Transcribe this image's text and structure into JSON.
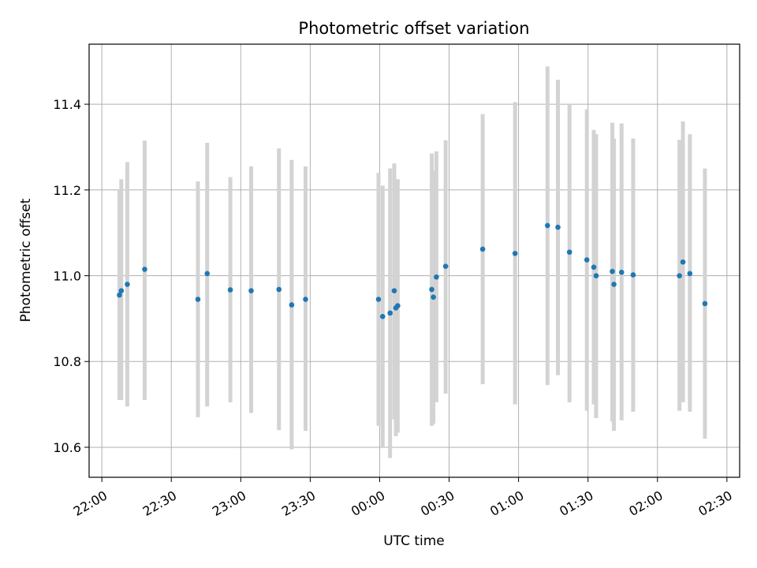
{
  "chart_data": {
    "type": "scatter",
    "title": "Photometric offset variation",
    "xlabel": "UTC time",
    "ylabel": "Photometric offset",
    "grid": true,
    "x_unit": "minutes",
    "x_ticks": [
      {
        "value": 0,
        "label": "22:00"
      },
      {
        "value": 30,
        "label": "22:30"
      },
      {
        "value": 60,
        "label": "23:00"
      },
      {
        "value": 90,
        "label": "23:30"
      },
      {
        "value": 120,
        "label": "00:00"
      },
      {
        "value": 150,
        "label": "00:30"
      },
      {
        "value": 180,
        "label": "01:00"
      },
      {
        "value": 210,
        "label": "01:30"
      },
      {
        "value": 240,
        "label": "02:00"
      },
      {
        "value": 270,
        "label": "02:30"
      }
    ],
    "y_ticks": [
      10.6,
      10.8,
      11.0,
      11.2,
      11.4
    ],
    "xlim": [
      -5.5,
      275.5
    ],
    "ylim": [
      10.53,
      11.54
    ],
    "colors": {
      "points": "#1f77b4",
      "errorbars": "#d3d3d3",
      "grid": "#b0b0b0"
    },
    "points": [
      {
        "x": 7.6,
        "y": 10.955,
        "lo": 10.71,
        "hi": 11.2
      },
      {
        "x": 8.4,
        "y": 10.965,
        "lo": 10.71,
        "hi": 11.225
      },
      {
        "x": 11.0,
        "y": 10.98,
        "lo": 10.695,
        "hi": 11.265
      },
      {
        "x": 18.5,
        "y": 11.015,
        "lo": 10.71,
        "hi": 11.315
      },
      {
        "x": 41.5,
        "y": 10.945,
        "lo": 10.67,
        "hi": 11.22
      },
      {
        "x": 45.5,
        "y": 11.005,
        "lo": 10.695,
        "hi": 11.31
      },
      {
        "x": 55.5,
        "y": 10.967,
        "lo": 10.705,
        "hi": 11.23
      },
      {
        "x": 64.5,
        "y": 10.965,
        "lo": 10.68,
        "hi": 11.255
      },
      {
        "x": 76.5,
        "y": 10.968,
        "lo": 10.64,
        "hi": 11.297
      },
      {
        "x": 82.0,
        "y": 10.932,
        "lo": 10.595,
        "hi": 11.27
      },
      {
        "x": 88.0,
        "y": 10.945,
        "lo": 10.638,
        "hi": 11.255
      },
      {
        "x": 119.5,
        "y": 10.945,
        "lo": 10.65,
        "hi": 11.24
      },
      {
        "x": 121.3,
        "y": 10.905,
        "lo": 10.6,
        "hi": 11.21
      },
      {
        "x": 124.5,
        "y": 10.913,
        "lo": 10.575,
        "hi": 11.25
      },
      {
        "x": 126.3,
        "y": 10.965,
        "lo": 10.665,
        "hi": 11.262
      },
      {
        "x": 127.0,
        "y": 10.925,
        "lo": 10.626,
        "hi": 11.225
      },
      {
        "x": 127.8,
        "y": 10.93,
        "lo": 10.634,
        "hi": 11.225
      },
      {
        "x": 142.5,
        "y": 10.968,
        "lo": 10.65,
        "hi": 11.285
      },
      {
        "x": 143.2,
        "y": 10.95,
        "lo": 10.655,
        "hi": 11.245
      },
      {
        "x": 144.5,
        "y": 10.997,
        "lo": 10.705,
        "hi": 11.29
      },
      {
        "x": 148.5,
        "y": 11.022,
        "lo": 10.725,
        "hi": 11.316
      },
      {
        "x": 164.5,
        "y": 11.062,
        "lo": 10.747,
        "hi": 11.377
      },
      {
        "x": 178.5,
        "y": 11.052,
        "lo": 10.7,
        "hi": 11.405
      },
      {
        "x": 192.5,
        "y": 11.117,
        "lo": 10.745,
        "hi": 11.488
      },
      {
        "x": 197.0,
        "y": 11.113,
        "lo": 10.768,
        "hi": 11.457
      },
      {
        "x": 202.0,
        "y": 11.055,
        "lo": 10.705,
        "hi": 11.4
      },
      {
        "x": 209.5,
        "y": 11.037,
        "lo": 10.685,
        "hi": 11.388
      },
      {
        "x": 212.5,
        "y": 11.02,
        "lo": 10.7,
        "hi": 11.34
      },
      {
        "x": 213.5,
        "y": 11.0,
        "lo": 10.668,
        "hi": 11.33
      },
      {
        "x": 220.5,
        "y": 11.01,
        "lo": 10.66,
        "hi": 11.357
      },
      {
        "x": 221.2,
        "y": 10.98,
        "lo": 10.638,
        "hi": 11.32
      },
      {
        "x": 224.5,
        "y": 11.008,
        "lo": 10.663,
        "hi": 11.355
      },
      {
        "x": 229.5,
        "y": 11.002,
        "lo": 10.683,
        "hi": 11.32
      },
      {
        "x": 249.5,
        "y": 11.0,
        "lo": 10.685,
        "hi": 11.317
      },
      {
        "x": 251.0,
        "y": 11.032,
        "lo": 10.705,
        "hi": 11.36
      },
      {
        "x": 254.0,
        "y": 11.005,
        "lo": 10.683,
        "hi": 11.33
      },
      {
        "x": 260.5,
        "y": 10.935,
        "lo": 10.62,
        "hi": 11.25
      }
    ]
  }
}
